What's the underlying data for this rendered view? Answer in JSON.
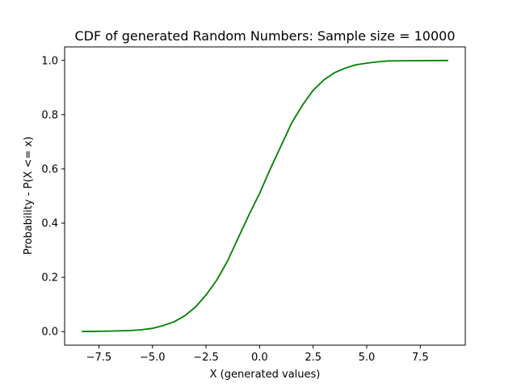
{
  "chart_data": {
    "type": "line",
    "title": "CDF of generated Random Numbers: Sample size = 10000",
    "xlabel": "X (generated values)",
    "ylabel": "Probability - P(X <= x)",
    "xlim": [
      -9.1,
      9.6
    ],
    "ylim": [
      -0.05,
      1.05
    ],
    "xticks": [
      -7.5,
      -5.0,
      -2.5,
      0.0,
      2.5,
      5.0,
      7.5
    ],
    "xtick_labels": [
      "−7.5",
      "−5.0",
      "−2.5",
      "0.0",
      "2.5",
      "5.0",
      "7.5"
    ],
    "yticks": [
      0.0,
      0.2,
      0.4,
      0.6,
      0.8,
      1.0
    ],
    "ytick_labels": [
      "0.0",
      "0.2",
      "0.4",
      "0.6",
      "0.8",
      "1.0"
    ],
    "grid": false,
    "series": [
      {
        "color": "#008000",
        "x": [
          -8.3,
          -7.0,
          -6.0,
          -5.5,
          -5.0,
          -4.5,
          -4.0,
          -3.5,
          -3.0,
          -2.5,
          -2.0,
          -1.5,
          -1.0,
          -0.5,
          0.0,
          0.5,
          1.0,
          1.5,
          2.0,
          2.5,
          3.0,
          3.5,
          4.0,
          4.5,
          5.0,
          5.5,
          6.0,
          7.0,
          8.8
        ],
        "y": [
          0.0,
          0.002,
          0.004,
          0.007,
          0.012,
          0.022,
          0.036,
          0.058,
          0.09,
          0.135,
          0.19,
          0.26,
          0.345,
          0.43,
          0.51,
          0.6,
          0.685,
          0.77,
          0.835,
          0.89,
          0.928,
          0.955,
          0.972,
          0.984,
          0.99,
          0.995,
          0.998,
          0.999,
          1.0
        ]
      }
    ]
  }
}
